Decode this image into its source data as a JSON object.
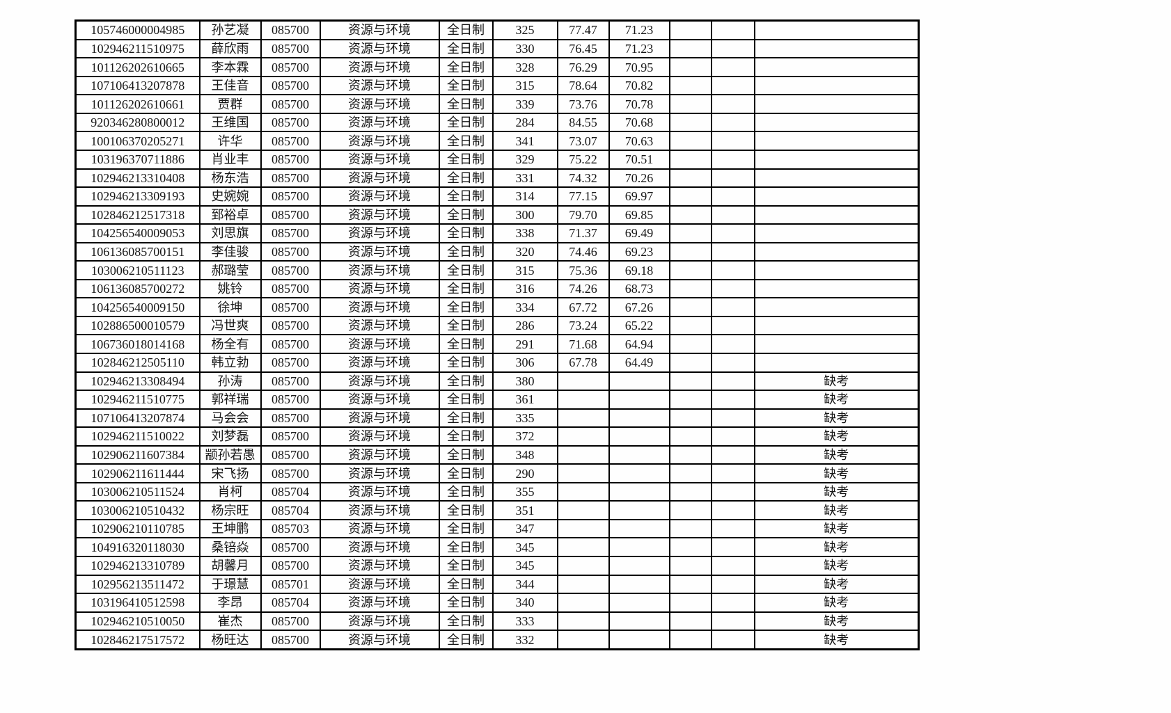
{
  "page": {
    "background_color": "#ffffff",
    "text_color": "#161616",
    "border_color": "#000000"
  },
  "table": {
    "columns": [
      {
        "key": "candidate-id"
      },
      {
        "key": "name"
      },
      {
        "key": "major-code"
      },
      {
        "key": "major-name"
      },
      {
        "key": "study-mode"
      },
      {
        "key": "initial-score"
      },
      {
        "key": "retest-score"
      },
      {
        "key": "total-score"
      },
      {
        "key": "empty-1"
      },
      {
        "key": "empty-2"
      },
      {
        "key": "remark"
      }
    ],
    "rows": [
      [
        "105746000004985",
        "孙艺凝",
        "085700",
        "资源与环境",
        "全日制",
        "325",
        "77.47",
        "71.23",
        "",
        "",
        ""
      ],
      [
        "102946211510975",
        "薛欣雨",
        "085700",
        "资源与环境",
        "全日制",
        "330",
        "76.45",
        "71.23",
        "",
        "",
        ""
      ],
      [
        "101126202610665",
        "李本霖",
        "085700",
        "资源与环境",
        "全日制",
        "328",
        "76.29",
        "70.95",
        "",
        "",
        ""
      ],
      [
        "107106413207878",
        "王佳音",
        "085700",
        "资源与环境",
        "全日制",
        "315",
        "78.64",
        "70.82",
        "",
        "",
        ""
      ],
      [
        "101126202610661",
        "贾群",
        "085700",
        "资源与环境",
        "全日制",
        "339",
        "73.76",
        "70.78",
        "",
        "",
        ""
      ],
      [
        "920346280800012",
        "王维国",
        "085700",
        "资源与环境",
        "全日制",
        "284",
        "84.55",
        "70.68",
        "",
        "",
        ""
      ],
      [
        "100106370205271",
        "许华",
        "085700",
        "资源与环境",
        "全日制",
        "341",
        "73.07",
        "70.63",
        "",
        "",
        ""
      ],
      [
        "103196370711886",
        "肖业丰",
        "085700",
        "资源与环境",
        "全日制",
        "329",
        "75.22",
        "70.51",
        "",
        "",
        ""
      ],
      [
        "102946213310408",
        "杨东浩",
        "085700",
        "资源与环境",
        "全日制",
        "331",
        "74.32",
        "70.26",
        "",
        "",
        ""
      ],
      [
        "102946213309193",
        "史婉婉",
        "085700",
        "资源与环境",
        "全日制",
        "314",
        "77.15",
        "69.97",
        "",
        "",
        ""
      ],
      [
        "102846212517318",
        "郅裕卓",
        "085700",
        "资源与环境",
        "全日制",
        "300",
        "79.70",
        "69.85",
        "",
        "",
        ""
      ],
      [
        "104256540009053",
        "刘思旗",
        "085700",
        "资源与环境",
        "全日制",
        "338",
        "71.37",
        "69.49",
        "",
        "",
        ""
      ],
      [
        "106136085700151",
        "李佳骏",
        "085700",
        "资源与环境",
        "全日制",
        "320",
        "74.46",
        "69.23",
        "",
        "",
        ""
      ],
      [
        "103006210511123",
        "郝璐莹",
        "085700",
        "资源与环境",
        "全日制",
        "315",
        "75.36",
        "69.18",
        "",
        "",
        ""
      ],
      [
        "106136085700272",
        "姚铃",
        "085700",
        "资源与环境",
        "全日制",
        "316",
        "74.26",
        "68.73",
        "",
        "",
        ""
      ],
      [
        "104256540009150",
        "徐坤",
        "085700",
        "资源与环境",
        "全日制",
        "334",
        "67.72",
        "67.26",
        "",
        "",
        ""
      ],
      [
        "102886500010579",
        "冯世爽",
        "085700",
        "资源与环境",
        "全日制",
        "286",
        "73.24",
        "65.22",
        "",
        "",
        ""
      ],
      [
        "106736018014168",
        "杨全有",
        "085700",
        "资源与环境",
        "全日制",
        "291",
        "71.68",
        "64.94",
        "",
        "",
        ""
      ],
      [
        "102846212505110",
        "韩立勃",
        "085700",
        "资源与环境",
        "全日制",
        "306",
        "67.78",
        "64.49",
        "",
        "",
        ""
      ],
      [
        "102946213308494",
        "孙涛",
        "085700",
        "资源与环境",
        "全日制",
        "380",
        "",
        "",
        "",
        "",
        "缺考"
      ],
      [
        "102946211510775",
        "郭祥瑞",
        "085700",
        "资源与环境",
        "全日制",
        "361",
        "",
        "",
        "",
        "",
        "缺考"
      ],
      [
        "107106413207874",
        "马会会",
        "085700",
        "资源与环境",
        "全日制",
        "335",
        "",
        "",
        "",
        "",
        "缺考"
      ],
      [
        "102946211510022",
        "刘梦磊",
        "085700",
        "资源与环境",
        "全日制",
        "372",
        "",
        "",
        "",
        "",
        "缺考"
      ],
      [
        "102906211607384",
        "颛孙若愚",
        "085700",
        "资源与环境",
        "全日制",
        "348",
        "",
        "",
        "",
        "",
        "缺考"
      ],
      [
        "102906211611444",
        "宋飞扬",
        "085700",
        "资源与环境",
        "全日制",
        "290",
        "",
        "",
        "",
        "",
        "缺考"
      ],
      [
        "103006210511524",
        "肖柯",
        "085704",
        "资源与环境",
        "全日制",
        "355",
        "",
        "",
        "",
        "",
        "缺考"
      ],
      [
        "103006210510432",
        "杨宗旺",
        "085704",
        "资源与环境",
        "全日制",
        "351",
        "",
        "",
        "",
        "",
        "缺考"
      ],
      [
        "102906210110785",
        "王坤鹏",
        "085703",
        "资源与环境",
        "全日制",
        "347",
        "",
        "",
        "",
        "",
        "缺考"
      ],
      [
        "104916320118030",
        "桑锫焱",
        "085700",
        "资源与环境",
        "全日制",
        "345",
        "",
        "",
        "",
        "",
        "缺考"
      ],
      [
        "102946213310789",
        "胡馨月",
        "085700",
        "资源与环境",
        "全日制",
        "345",
        "",
        "",
        "",
        "",
        "缺考"
      ],
      [
        "102956213511472",
        "于璟慧",
        "085701",
        "资源与环境",
        "全日制",
        "344",
        "",
        "",
        "",
        "",
        "缺考"
      ],
      [
        "103196410512598",
        "李昂",
        "085704",
        "资源与环境",
        "全日制",
        "340",
        "",
        "",
        "",
        "",
        "缺考"
      ],
      [
        "102946210510050",
        "崔杰",
        "085700",
        "资源与环境",
        "全日制",
        "333",
        "",
        "",
        "",
        "",
        "缺考"
      ],
      [
        "102846217517572",
        "杨旺达",
        "085700",
        "资源与环境",
        "全日制",
        "332",
        "",
        "",
        "",
        "",
        "缺考"
      ]
    ]
  }
}
